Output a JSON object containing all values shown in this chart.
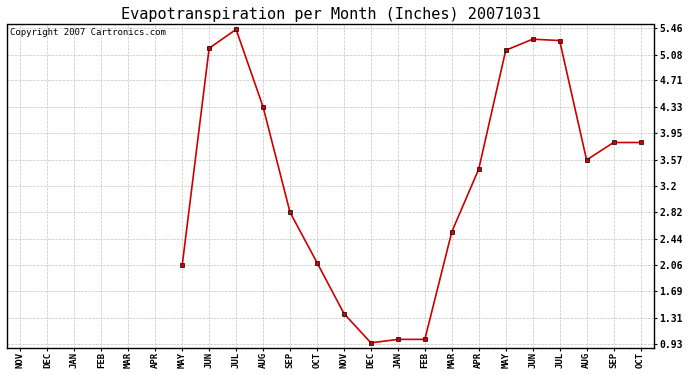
{
  "title": "Evapotranspiration per Month (Inches) 20071031",
  "copyright_text": "Copyright 2007 Cartronics.com",
  "x_labels": [
    "NOV",
    "DEC",
    "JAN",
    "FEB",
    "MAR",
    "APR",
    "MAY",
    "JUN",
    "JUL",
    "AUG",
    "SEP",
    "OCT",
    "NOV",
    "DEC",
    "JAN",
    "FEB",
    "MAR",
    "APR",
    "MAY",
    "JUN",
    "JUL",
    "AUG",
    "SEP",
    "OCT"
  ],
  "x_data": [
    6,
    7,
    8,
    9,
    10,
    11,
    12,
    13,
    14,
    15,
    16,
    17,
    18,
    19,
    20,
    21,
    22,
    23
  ],
  "y_data": [
    2.06,
    5.17,
    5.44,
    4.33,
    2.82,
    2.1,
    1.37,
    0.95,
    1.0,
    1.0,
    2.54,
    3.44,
    5.14,
    5.3,
    5.28,
    3.57,
    3.82,
    3.82
  ],
  "yticks": [
    0.93,
    1.31,
    1.69,
    2.06,
    2.44,
    2.82,
    3.2,
    3.57,
    3.95,
    4.33,
    4.71,
    5.08,
    5.46
  ],
  "ymin": 0.93,
  "ymax": 5.46,
  "line_color": "#cc0000",
  "marker": "s",
  "marker_size": 3,
  "bg_color": "#ffffff",
  "plot_bg_color": "#ffffff",
  "grid_color": "#aaaaaa",
  "title_fontsize": 11,
  "copyright_fontsize": 6.5
}
